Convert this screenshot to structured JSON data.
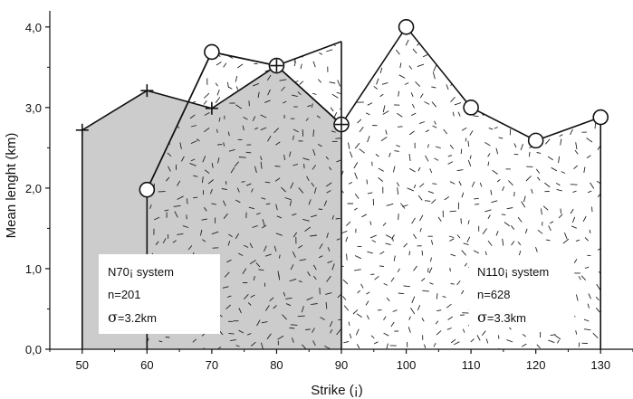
{
  "chart_data": {
    "type": "area",
    "xlabel": "Strike  (¡)",
    "ylabel": "Mean lenght  (km)",
    "xlim": [
      45,
      135
    ],
    "ylim": [
      0,
      4.2
    ],
    "xticks": [
      "50",
      "60",
      "70",
      "80",
      "90",
      "100",
      "110",
      "120",
      "130"
    ],
    "yticks": [
      "0,0",
      "1,0",
      "2,0",
      "3,0",
      "4,0"
    ],
    "series": [
      {
        "marker": "plus",
        "x": [
          50,
          60,
          70,
          80,
          90
        ],
        "y": [
          2.72,
          3.21,
          2.99,
          3.52,
          2.79
        ]
      },
      {
        "marker": "circle",
        "x": [
          60,
          70,
          80,
          90,
          100,
          110,
          120,
          130
        ],
        "y": [
          1.98,
          3.69,
          3.52,
          2.79,
          4.0,
          3.0,
          2.59,
          2.88
        ]
      }
    ],
    "shaded_region": {
      "x": [
        50,
        60,
        70,
        80,
        90
      ],
      "y": [
        2.72,
        3.21,
        2.99,
        3.52,
        2.79
      ],
      "color": "#cccccc"
    },
    "hatched_region": {
      "x": [
        60,
        70,
        80,
        90,
        90,
        100,
        110,
        120,
        130
      ],
      "y": [
        1.98,
        3.69,
        3.52,
        3.82,
        2.79,
        4.0,
        3.0,
        2.59,
        2.88
      ]
    },
    "annotations": [
      {
        "line1": "N70¡ system",
        "line2": "n=201",
        "sigma": "σ",
        "line3": "=3.2km"
      },
      {
        "line1": "N110¡ system",
        "line2": "n=628",
        "sigma": "σ",
        "line3": "=3.3km"
      }
    ]
  }
}
